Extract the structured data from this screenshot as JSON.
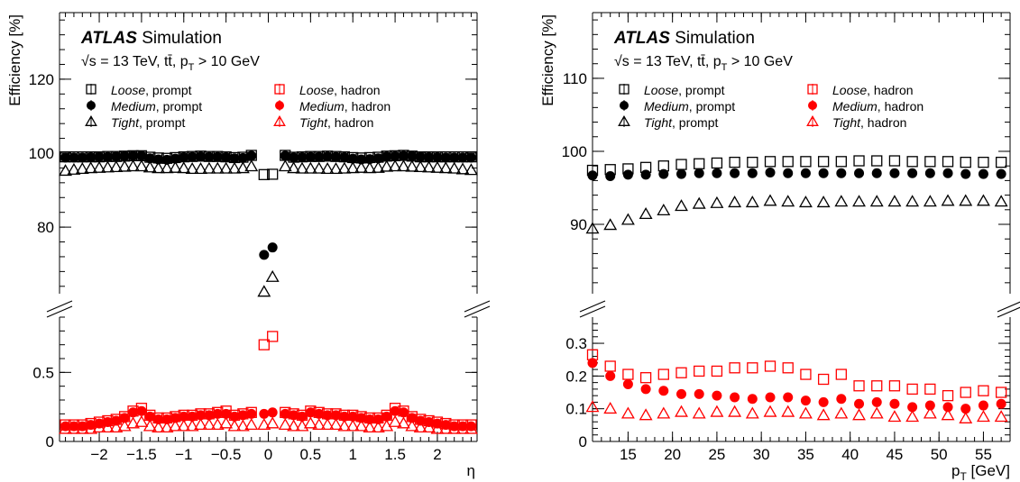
{
  "colors": {
    "prompt": "#000000",
    "hadron": "#ff0000",
    "axis": "#000000"
  },
  "chart_data": [
    {
      "type": "scatter",
      "panel": "left",
      "ylabel": "Efficiency [%]",
      "xlabel": "η",
      "header": {
        "atlas": "ATLAS",
        "simulation": " Simulation",
        "energy_line": "√s = 13 TeV, tt̄, p",
        "energy_sub": "T",
        "energy_tail": " > 10 GeV"
      },
      "xlim": [
        -2.47,
        2.47
      ],
      "ylim_lower": [
        0,
        0.9
      ],
      "ylim_upper": [
        62,
        138
      ],
      "xticks": [
        -2,
        -1.5,
        -1,
        -0.5,
        0,
        0.5,
        1,
        1.5,
        2
      ],
      "xtick_labels": [
        "−2",
        "−1.5",
        "−1",
        "−0.5",
        "0",
        "0.5",
        "1",
        "1.5",
        "2"
      ],
      "yticks_upper": [
        80,
        100,
        120
      ],
      "yticks_lower": [
        0,
        0.5
      ],
      "ytick_labels_upper": [
        "80",
        "100",
        "120"
      ],
      "ytick_labels_lower": [
        "0",
        "0.5"
      ],
      "grid": false,
      "legend_position": "top",
      "legend": [
        {
          "name": "Loose",
          "suffix": ", prompt",
          "marker": "open-square",
          "color": "prompt"
        },
        {
          "name": "Loose",
          "suffix": ", hadron",
          "marker": "open-square",
          "color": "hadron"
        },
        {
          "name": "Medium",
          "suffix": ", prompt",
          "marker": "filled-circle",
          "color": "prompt"
        },
        {
          "name": "Medium",
          "suffix": ", hadron",
          "marker": "filled-circle",
          "color": "hadron"
        },
        {
          "name": "Tight",
          "suffix": ", prompt",
          "marker": "open-triangle",
          "color": "prompt"
        },
        {
          "name": "Tight",
          "suffix": ", hadron",
          "marker": "open-triangle",
          "color": "hadron"
        }
      ],
      "x": [
        -2.4,
        -2.3,
        -2.2,
        -2.1,
        -2.0,
        -1.9,
        -1.8,
        -1.7,
        -1.6,
        -1.5,
        -1.4,
        -1.3,
        -1.2,
        -1.1,
        -1.0,
        -0.9,
        -0.8,
        -0.7,
        -0.6,
        -0.5,
        -0.4,
        -0.3,
        -0.2,
        -0.05,
        0.05,
        0.2,
        0.3,
        0.4,
        0.5,
        0.6,
        0.7,
        0.8,
        0.9,
        1.0,
        1.1,
        1.2,
        1.3,
        1.4,
        1.5,
        1.6,
        1.7,
        1.8,
        1.9,
        2.0,
        2.1,
        2.2,
        2.3,
        2.4
      ],
      "series": [
        {
          "name": "Loose, prompt",
          "marker": "open-square",
          "color": "prompt",
          "values": [
            99.0,
            99.0,
            99.0,
            99.0,
            99.0,
            99.1,
            99.1,
            99.2,
            99.3,
            99.3,
            98.9,
            98.7,
            98.6,
            98.8,
            99.0,
            99.1,
            99.2,
            99.1,
            99.1,
            99.0,
            98.8,
            98.9,
            99.4,
            94.2,
            94.3,
            99.4,
            98.9,
            99.0,
            99.1,
            99.1,
            99.2,
            99.1,
            99.0,
            98.8,
            98.7,
            98.8,
            98.9,
            99.2,
            99.3,
            99.4,
            99.2,
            99.0,
            99.0,
            99.0,
            99.0,
            99.0,
            99.0,
            99.0
          ]
        },
        {
          "name": "Medium, prompt",
          "marker": "filled-circle",
          "color": "prompt",
          "values": [
            98.8,
            98.8,
            98.8,
            98.9,
            99.0,
            99.0,
            99.1,
            99.2,
            99.3,
            99.3,
            98.6,
            98.3,
            98.2,
            98.5,
            98.9,
            99.0,
            99.1,
            99.0,
            99.0,
            98.9,
            98.6,
            98.7,
            99.3,
            72.5,
            74.5,
            99.3,
            98.8,
            98.9,
            99.0,
            99.0,
            99.1,
            99.0,
            98.9,
            98.5,
            98.3,
            98.4,
            98.6,
            99.1,
            99.2,
            99.3,
            99.2,
            99.0,
            98.9,
            98.9,
            98.8,
            98.8,
            98.8,
            98.8
          ]
        },
        {
          "name": "Tight, prompt",
          "marker": "open-triangle",
          "color": "prompt",
          "values": [
            95.2,
            95.5,
            95.7,
            95.9,
            96.0,
            96.1,
            96.2,
            96.3,
            96.4,
            96.4,
            96.1,
            95.9,
            95.9,
            96.0,
            95.9,
            95.7,
            95.7,
            95.8,
            95.8,
            95.8,
            95.8,
            95.9,
            96.4,
            62.5,
            66.5,
            96.4,
            95.9,
            95.8,
            95.8,
            95.8,
            95.7,
            95.7,
            95.8,
            95.9,
            96.0,
            95.9,
            96.0,
            96.3,
            96.4,
            96.4,
            96.3,
            96.2,
            96.1,
            96.0,
            95.9,
            95.8,
            95.6,
            95.4
          ]
        },
        {
          "name": "Loose, hadron",
          "marker": "open-square",
          "color": "hadron",
          "values": [
            0.12,
            0.12,
            0.12,
            0.13,
            0.14,
            0.15,
            0.16,
            0.18,
            0.22,
            0.24,
            0.19,
            0.17,
            0.17,
            0.18,
            0.19,
            0.19,
            0.2,
            0.2,
            0.21,
            0.22,
            0.19,
            0.2,
            0.21,
            0.7,
            0.76,
            0.21,
            0.2,
            0.19,
            0.22,
            0.21,
            0.2,
            0.2,
            0.19,
            0.19,
            0.18,
            0.17,
            0.17,
            0.19,
            0.24,
            0.22,
            0.18,
            0.16,
            0.15,
            0.14,
            0.13,
            0.12,
            0.12,
            0.12
          ]
        },
        {
          "name": "Medium, hadron",
          "marker": "filled-circle",
          "color": "hadron",
          "values": [
            0.11,
            0.11,
            0.11,
            0.12,
            0.13,
            0.14,
            0.15,
            0.17,
            0.21,
            0.22,
            0.18,
            0.16,
            0.16,
            0.17,
            0.18,
            0.18,
            0.19,
            0.19,
            0.2,
            0.2,
            0.18,
            0.19,
            0.2,
            0.2,
            0.21,
            0.2,
            0.19,
            0.18,
            0.21,
            0.2,
            0.19,
            0.19,
            0.18,
            0.18,
            0.17,
            0.16,
            0.16,
            0.18,
            0.22,
            0.21,
            0.17,
            0.15,
            0.14,
            0.13,
            0.12,
            0.11,
            0.11,
            0.11
          ]
        },
        {
          "name": "Tight, hadron",
          "marker": "open-triangle",
          "color": "hadron",
          "values": [
            0.09,
            0.09,
            0.09,
            0.09,
            0.1,
            0.1,
            0.1,
            0.11,
            0.13,
            0.14,
            0.11,
            0.1,
            0.1,
            0.11,
            0.11,
            0.11,
            0.12,
            0.12,
            0.12,
            0.13,
            0.11,
            0.11,
            0.12,
            0.12,
            0.13,
            0.12,
            0.11,
            0.11,
            0.13,
            0.12,
            0.12,
            0.12,
            0.11,
            0.11,
            0.11,
            0.1,
            0.1,
            0.11,
            0.14,
            0.13,
            0.11,
            0.1,
            0.1,
            0.09,
            0.09,
            0.09,
            0.09,
            0.09
          ]
        }
      ]
    },
    {
      "type": "scatter",
      "panel": "right",
      "ylabel": "Efficiency [%]",
      "xlabel": "p",
      "xlabel_sub": "T",
      "xlabel_tail": " [GeV]",
      "header": {
        "atlas": "ATLAS",
        "simulation": " Simulation",
        "energy_line": "√s = 13 TeV, tt̄, p",
        "energy_sub": "T",
        "energy_tail": " > 10 GeV"
      },
      "xlim": [
        11,
        58
      ],
      "ylim_lower": [
        0,
        0.38
      ],
      "ylim_upper": [
        80.5,
        119
      ],
      "xticks": [
        15,
        20,
        25,
        30,
        35,
        40,
        45,
        50,
        55
      ],
      "xtick_labels": [
        "15",
        "20",
        "25",
        "30",
        "35",
        "40",
        "45",
        "50",
        "55"
      ],
      "yticks_upper": [
        90,
        100,
        110
      ],
      "yticks_lower": [
        0.1,
        0.2,
        0.3
      ],
      "ytick_labels_upper": [
        "90",
        "100",
        "110"
      ],
      "ytick_labels_lower": [
        "0.1",
        "0.2",
        "0.3"
      ],
      "ytick_label_zero": "0",
      "grid": false,
      "legend_position": "top",
      "legend": [
        {
          "name": "Loose",
          "suffix": ", prompt",
          "marker": "open-square",
          "color": "prompt"
        },
        {
          "name": "Loose",
          "suffix": ", hadron",
          "marker": "open-square",
          "color": "hadron"
        },
        {
          "name": "Medium",
          "suffix": ", prompt",
          "marker": "filled-circle",
          "color": "prompt"
        },
        {
          "name": "Medium",
          "suffix": ", hadron",
          "marker": "filled-circle",
          "color": "hadron"
        },
        {
          "name": "Tight",
          "suffix": ", prompt",
          "marker": "open-triangle",
          "color": "prompt"
        },
        {
          "name": "Tight",
          "suffix": ", hadron",
          "marker": "open-triangle",
          "color": "hadron"
        }
      ],
      "x": [
        11,
        13,
        15,
        17,
        19,
        21,
        23,
        25,
        27,
        29,
        31,
        33,
        35,
        37,
        39,
        41,
        43,
        45,
        47,
        49,
        51,
        53,
        55,
        57
      ],
      "series": [
        {
          "name": "Loose, prompt",
          "marker": "open-square",
          "color": "prompt",
          "values": [
            97.4,
            97.5,
            97.6,
            97.8,
            98.0,
            98.2,
            98.3,
            98.4,
            98.5,
            98.5,
            98.6,
            98.6,
            98.6,
            98.6,
            98.6,
            98.7,
            98.7,
            98.7,
            98.6,
            98.6,
            98.6,
            98.5,
            98.5,
            98.5
          ]
        },
        {
          "name": "Medium, prompt",
          "marker": "filled-circle",
          "color": "prompt",
          "values": [
            96.7,
            96.6,
            96.8,
            96.8,
            96.9,
            96.9,
            97.0,
            97.0,
            97.0,
            97.0,
            97.1,
            97.0,
            97.0,
            97.0,
            97.0,
            97.0,
            97.0,
            97.0,
            97.0,
            97.0,
            97.0,
            96.9,
            96.9,
            96.9
          ]
        },
        {
          "name": "Tight, prompt",
          "marker": "open-triangle",
          "color": "prompt",
          "values": [
            89.4,
            89.9,
            90.6,
            91.4,
            91.9,
            92.5,
            92.8,
            92.9,
            93.0,
            93.0,
            93.2,
            93.1,
            93.0,
            93.0,
            93.1,
            93.1,
            93.1,
            93.1,
            93.1,
            93.1,
            93.2,
            93.2,
            93.2,
            93.1
          ]
        },
        {
          "name": "Loose, hadron",
          "marker": "open-square",
          "color": "hadron",
          "values": [
            0.265,
            0.23,
            0.205,
            0.195,
            0.205,
            0.21,
            0.215,
            0.215,
            0.225,
            0.225,
            0.23,
            0.225,
            0.205,
            0.19,
            0.205,
            0.17,
            0.17,
            0.17,
            0.16,
            0.16,
            0.14,
            0.15,
            0.155,
            0.15
          ]
        },
        {
          "name": "Medium, hadron",
          "marker": "filled-circle",
          "color": "hadron",
          "values": [
            0.24,
            0.2,
            0.175,
            0.16,
            0.155,
            0.145,
            0.145,
            0.14,
            0.135,
            0.13,
            0.135,
            0.135,
            0.125,
            0.12,
            0.13,
            0.115,
            0.12,
            0.115,
            0.105,
            0.11,
            0.105,
            0.1,
            0.11,
            0.115
          ]
        },
        {
          "name": "Tight, hadron",
          "marker": "open-triangle",
          "color": "hadron",
          "values": [
            0.105,
            0.1,
            0.085,
            0.08,
            0.085,
            0.09,
            0.085,
            0.09,
            0.09,
            0.085,
            0.09,
            0.09,
            0.085,
            0.08,
            0.085,
            0.08,
            0.085,
            0.075,
            0.075,
            0.085,
            0.08,
            0.07,
            0.075,
            0.075
          ]
        }
      ]
    }
  ]
}
